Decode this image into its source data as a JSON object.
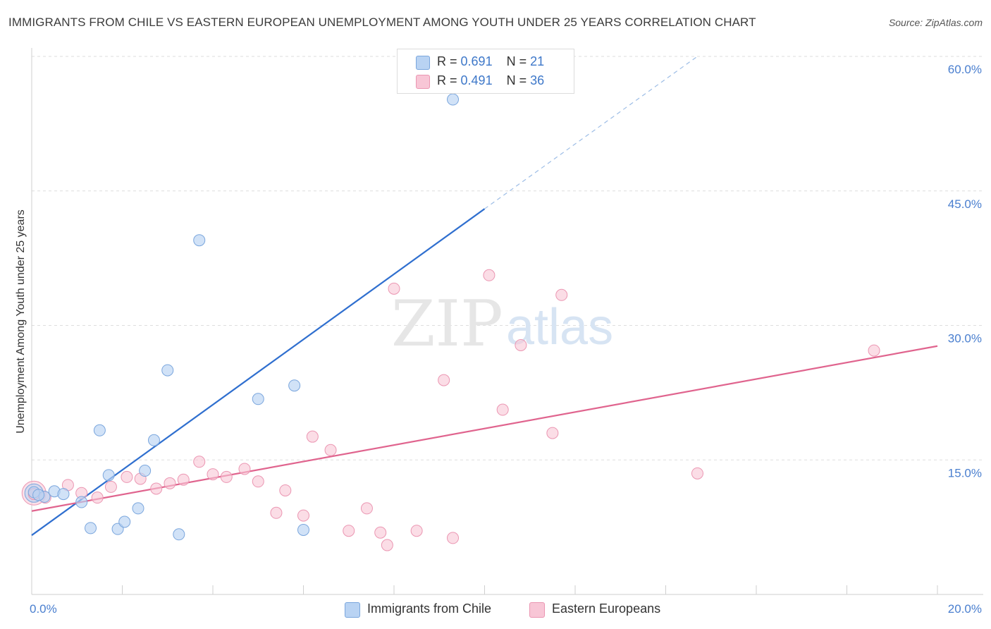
{
  "title": "IMMIGRANTS FROM CHILE VS EASTERN EUROPEAN UNEMPLOYMENT AMONG YOUTH UNDER 25 YEARS CORRELATION CHART",
  "source": "Source: ZipAtlas.com",
  "watermark": {
    "zip": "ZIP",
    "atlas": "atlas"
  },
  "legend_top": [
    {
      "r_label": "R =",
      "r_value": "0.691",
      "n_label": "N =",
      "n_value": "21"
    },
    {
      "r_label": "R =",
      "r_value": "0.491",
      "n_label": "N =",
      "n_value": "36"
    }
  ],
  "legend_bottom": [
    "Immigrants from Chile",
    "Eastern Europeans"
  ],
  "colors": {
    "blue_fill": "#b9d3f3",
    "blue_stroke": "#7aa6dd",
    "blue_line": "#2f6fcf",
    "pink_fill": "#f8c6d6",
    "pink_stroke": "#eb96b2",
    "pink_line": "#e0648e",
    "grid": "#dedede",
    "tick_text": "#4a7fcf"
  },
  "chart_data": {
    "type": "scatter",
    "title": "IMMIGRANTS FROM CHILE VS EASTERN EUROPEAN UNEMPLOYMENT AMONG YOUTH UNDER 25 YEARS CORRELATION CHART",
    "xlabel": "",
    "ylabel": "Unemployment Among Youth under 25 years",
    "xlim": [
      0,
      20
    ],
    "ylim": [
      0,
      60
    ],
    "x_tick_labels": [
      {
        "value": 0,
        "label": "0.0%"
      },
      {
        "value": 20,
        "label": "20.0%"
      }
    ],
    "y_tick_labels": [
      {
        "value": 15,
        "label": "15.0%"
      },
      {
        "value": 30,
        "label": "30.0%"
      },
      {
        "value": 45,
        "label": "45.0%"
      },
      {
        "value": 60,
        "label": "60.0%"
      }
    ],
    "series": [
      {
        "name": "Immigrants from Chile",
        "color": "blue",
        "r": 0.691,
        "n": 21,
        "points": [
          [
            0.05,
            11.4
          ],
          [
            0.28,
            10.9
          ],
          [
            0.5,
            11.5
          ],
          [
            0.7,
            11.2
          ],
          [
            1.1,
            10.3
          ],
          [
            1.3,
            7.4
          ],
          [
            1.5,
            18.3
          ],
          [
            1.7,
            13.3
          ],
          [
            1.9,
            7.3
          ],
          [
            2.05,
            8.1
          ],
          [
            2.35,
            9.6
          ],
          [
            2.5,
            13.8
          ],
          [
            2.7,
            17.2
          ],
          [
            3.0,
            25.0
          ],
          [
            3.25,
            6.7
          ],
          [
            3.7,
            39.5
          ],
          [
            5.0,
            21.8
          ],
          [
            5.8,
            23.3
          ],
          [
            6.0,
            7.2
          ],
          [
            9.3,
            55.2
          ],
          [
            0.15,
            11.1
          ]
        ],
        "trend": {
          "x0": 0,
          "y0": 6.6,
          "x1": 10.0,
          "y1": 43.0,
          "dash_x1": 14.7,
          "dash_y1": 60.0
        }
      },
      {
        "name": "Eastern Europeans",
        "color": "pink",
        "r": 0.491,
        "n": 36,
        "points": [
          [
            0.05,
            11.2
          ],
          [
            0.3,
            10.8
          ],
          [
            0.8,
            12.2
          ],
          [
            1.1,
            11.3
          ],
          [
            1.45,
            10.8
          ],
          [
            1.75,
            12.0
          ],
          [
            2.1,
            13.1
          ],
          [
            2.4,
            12.9
          ],
          [
            2.75,
            11.8
          ],
          [
            3.05,
            12.4
          ],
          [
            3.35,
            12.8
          ],
          [
            3.7,
            14.8
          ],
          [
            4.0,
            13.4
          ],
          [
            4.3,
            13.1
          ],
          [
            4.7,
            14.0
          ],
          [
            5.0,
            12.6
          ],
          [
            5.4,
            9.1
          ],
          [
            5.6,
            11.6
          ],
          [
            6.0,
            8.8
          ],
          [
            6.2,
            17.6
          ],
          [
            6.6,
            16.1
          ],
          [
            7.0,
            7.1
          ],
          [
            7.4,
            9.6
          ],
          [
            7.7,
            6.9
          ],
          [
            7.85,
            5.5
          ],
          [
            8.0,
            34.1
          ],
          [
            8.5,
            7.1
          ],
          [
            9.1,
            23.9
          ],
          [
            9.3,
            6.3
          ],
          [
            10.1,
            35.6
          ],
          [
            10.4,
            20.6
          ],
          [
            10.8,
            27.8
          ],
          [
            11.5,
            18.0
          ],
          [
            11.7,
            33.4
          ],
          [
            14.7,
            13.5
          ],
          [
            18.6,
            27.2
          ]
        ],
        "trend": {
          "x0": 0,
          "y0": 9.3,
          "x1": 20.0,
          "y1": 27.7
        }
      }
    ],
    "grid": true
  }
}
